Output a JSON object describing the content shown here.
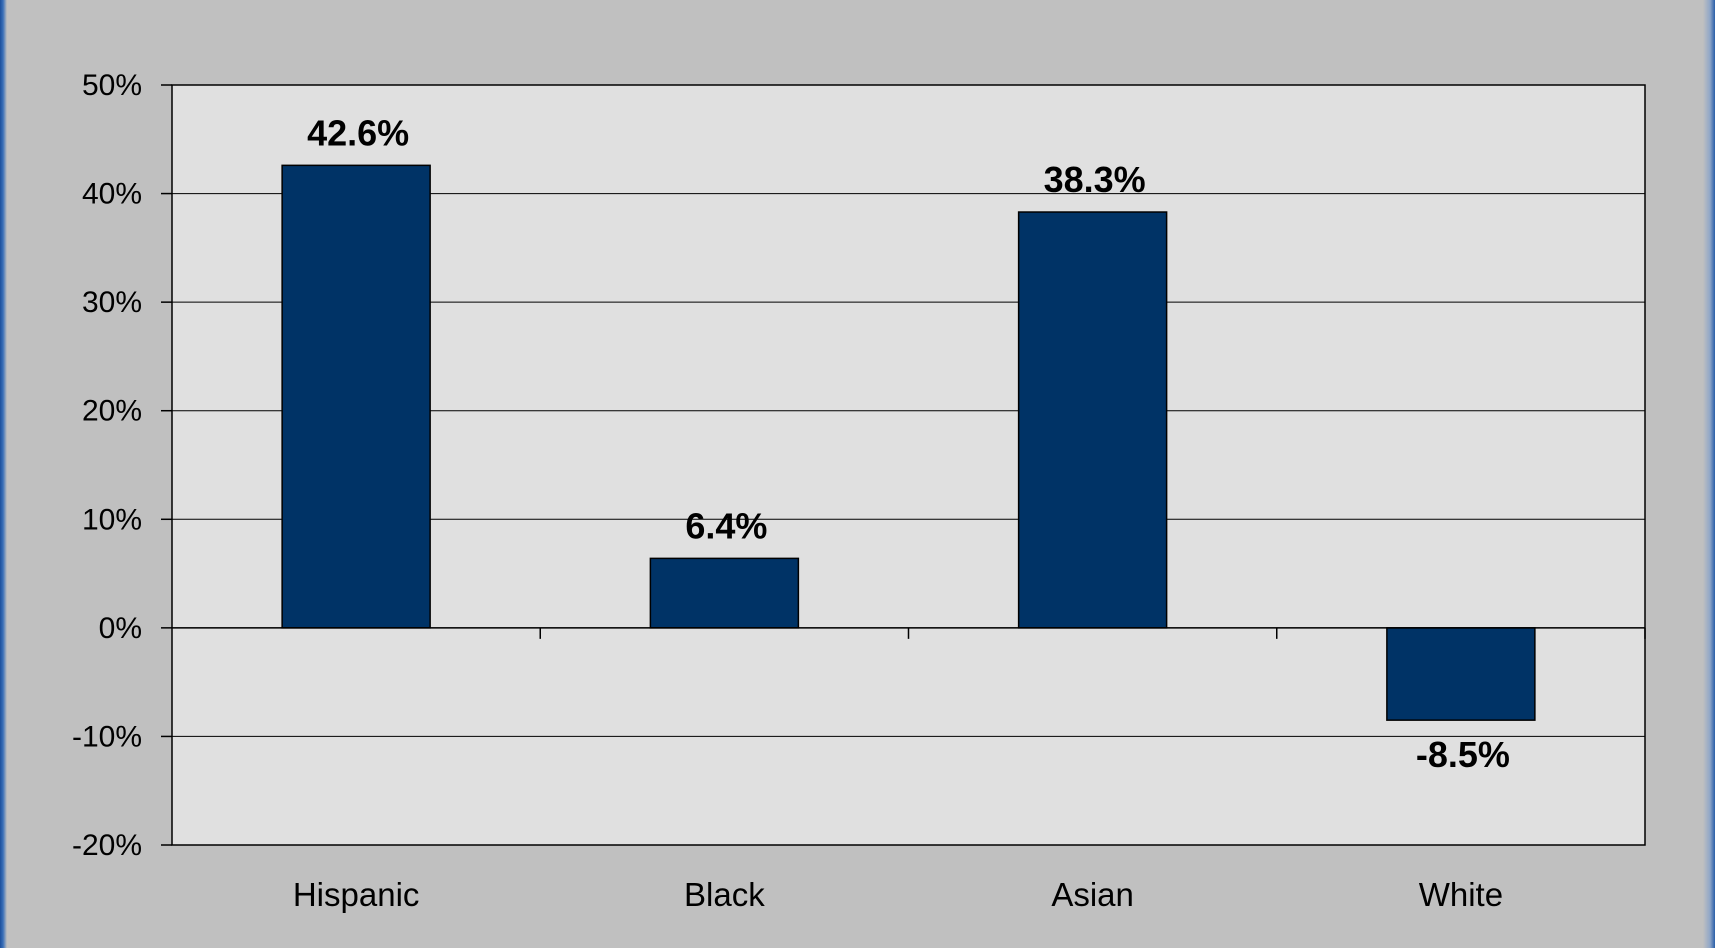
{
  "chart_data": {
    "type": "bar",
    "title": "",
    "xlabel": "",
    "ylabel": "",
    "categories": [
      "Hispanic",
      "Black",
      "Asian",
      "White"
    ],
    "values": [
      42.6,
      6.4,
      38.3,
      -8.5
    ],
    "data_labels": [
      "42.6%",
      "6.4%",
      "38.3%",
      "-8.5%"
    ],
    "ylim": [
      -20,
      50
    ],
    "yticks": [
      50,
      40,
      30,
      20,
      10,
      0,
      -10,
      -20
    ],
    "ytick_labels": [
      "50%",
      "40%",
      "30%",
      "20%",
      "10%",
      "0%",
      "-10%",
      "-20%"
    ],
    "grid": true,
    "legend": "none",
    "colors": {
      "bar": "#003366",
      "plot_background": "#e0e0e0",
      "chart_background": "#c0c0c0",
      "gridline": "#000000"
    }
  }
}
